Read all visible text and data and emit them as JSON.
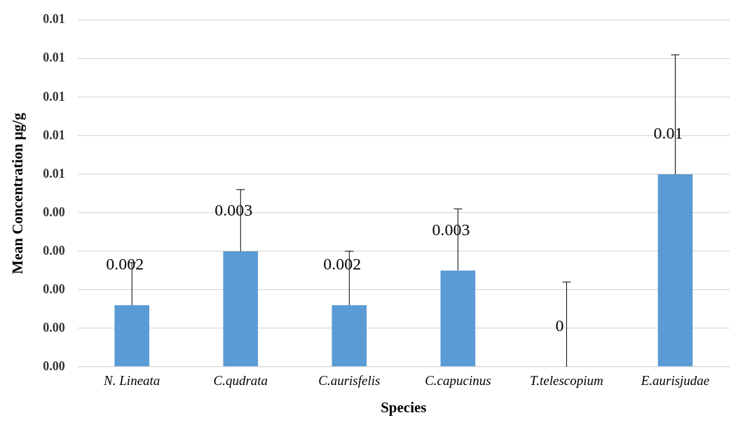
{
  "chart_data": {
    "type": "bar",
    "xlabel": "Species",
    "ylabel": "Mean Concentration μg/g",
    "categories": [
      "N. Lineata",
      "C.qudrata",
      "C.aurisfelis",
      "C.capucinus",
      "T.telescopium",
      "E.aurisjudae"
    ],
    "values": [
      0.0016,
      0.003,
      0.0016,
      0.0025,
      0,
      0.005
    ],
    "errors": [
      [
        0.0016,
        0.0027
      ],
      [
        0.003,
        0.0046
      ],
      [
        0.0016,
        0.003
      ],
      [
        0.0025,
        0.0041
      ],
      [
        0,
        0.0022
      ],
      [
        0.005,
        0.0081
      ]
    ],
    "value_labels": [
      "0.002",
      "0.003",
      "0.002",
      "0.003",
      "0",
      "0.01"
    ],
    "color": "#5b9bd5",
    "ylim": [
      0,
      0.009
    ],
    "yticks": [
      {
        "value": 0,
        "label": "0.00"
      },
      {
        "value": 0.001,
        "label": "0.00"
      },
      {
        "value": 0.002,
        "label": "0.00"
      },
      {
        "value": 0.003,
        "label": "0.00"
      },
      {
        "value": 0.004,
        "label": "0.00"
      },
      {
        "value": 0.005,
        "label": "0.01"
      },
      {
        "value": 0.006,
        "label": "0.01"
      },
      {
        "value": 0.007,
        "label": "0.01"
      },
      {
        "value": 0.008,
        "label": "0.01"
      },
      {
        "value": 0.009,
        "label": "0.01"
      }
    ],
    "grid": "y",
    "legend": false
  }
}
